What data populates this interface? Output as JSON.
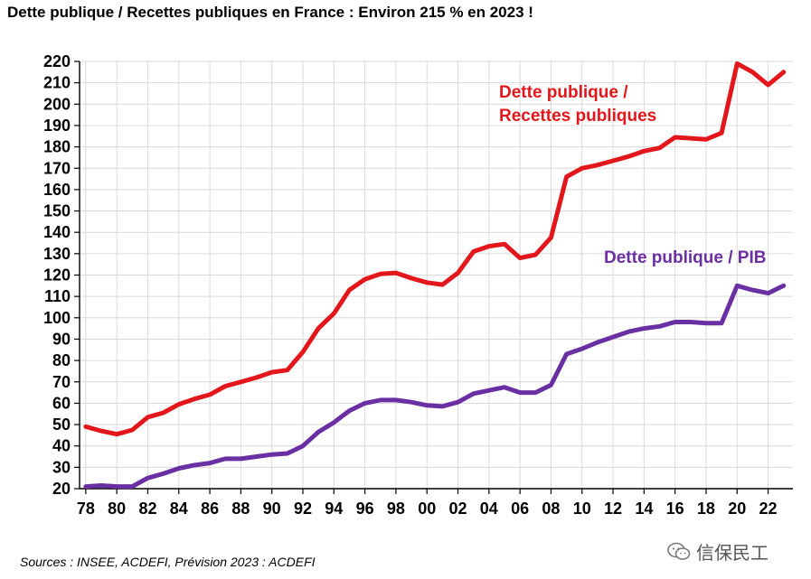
{
  "title": "Dette publique / Recettes publiques en France : Environ 215 % en 2023 !",
  "source": "Sources : INSEE, ACDEFI, Prévision 2023 : ACDEFI",
  "watermark": "信保民工",
  "chart_data": {
    "type": "line",
    "title": "Dette publique / Recettes publiques en France : Environ 215 % en 2023 !",
    "xlabel": "",
    "ylabel": "",
    "ylim": [
      20,
      220
    ],
    "xlim": [
      1978,
      2023
    ],
    "grid": true,
    "yticks": [
      20,
      30,
      40,
      50,
      60,
      70,
      80,
      90,
      100,
      110,
      120,
      130,
      140,
      150,
      160,
      170,
      180,
      190,
      200,
      210,
      220
    ],
    "xticks": [
      1978,
      1980,
      1982,
      1984,
      1986,
      1988,
      1990,
      1992,
      1994,
      1996,
      1998,
      2000,
      2002,
      2004,
      2006,
      2008,
      2010,
      2012,
      2014,
      2016,
      2018,
      2020,
      2022
    ],
    "xtick_labels": [
      "78",
      "80",
      "82",
      "84",
      "86",
      "88",
      "90",
      "92",
      "94",
      "96",
      "98",
      "00",
      "02",
      "04",
      "06",
      "08",
      "10",
      "12",
      "14",
      "16",
      "18",
      "20",
      "22"
    ],
    "x": [
      1978,
      1979,
      1980,
      1981,
      1982,
      1983,
      1984,
      1985,
      1986,
      1987,
      1988,
      1989,
      1990,
      1991,
      1992,
      1993,
      1994,
      1995,
      1996,
      1997,
      1998,
      1999,
      2000,
      2001,
      2002,
      2003,
      2004,
      2005,
      2006,
      2007,
      2008,
      2009,
      2010,
      2011,
      2012,
      2013,
      2014,
      2015,
      2016,
      2017,
      2018,
      2019,
      2020,
      2021,
      2022,
      2023
    ],
    "series": [
      {
        "name": "Dette publique / Recettes publiques",
        "label_lines": [
          "Dette publique /",
          "Recettes publiques"
        ],
        "color": "#e3161b",
        "values": [
          49,
          47,
          45.5,
          47.5,
          53.5,
          55.5,
          59.5,
          62,
          64,
          68,
          70,
          72,
          74.5,
          75.5,
          84,
          95,
          102,
          113,
          118,
          120.5,
          121,
          118.5,
          116.5,
          115.5,
          121,
          131,
          133.5,
          134.5,
          128,
          129.5,
          137.5,
          166,
          170,
          171.5,
          173.5,
          175.5,
          178,
          179.5,
          184.5,
          184,
          183.5,
          186.5,
          219,
          215,
          209,
          215
        ]
      },
      {
        "name": "Dette publique / PIB",
        "label_lines": [
          "Dette publique / PIB"
        ],
        "color": "#6a2fa3",
        "values": [
          21,
          21.5,
          21,
          21,
          25,
          27,
          29.5,
          31,
          32,
          34,
          34,
          35,
          36,
          36.5,
          40,
          46.5,
          51,
          56.5,
          60,
          61.5,
          61.5,
          60.5,
          59,
          58.5,
          60.5,
          64.5,
          66,
          67.5,
          65,
          65,
          68.5,
          83,
          85.5,
          88.5,
          91,
          93.5,
          95,
          96,
          98,
          98,
          97.5,
          97.5,
          115,
          113,
          111.5,
          115
        ]
      }
    ]
  }
}
